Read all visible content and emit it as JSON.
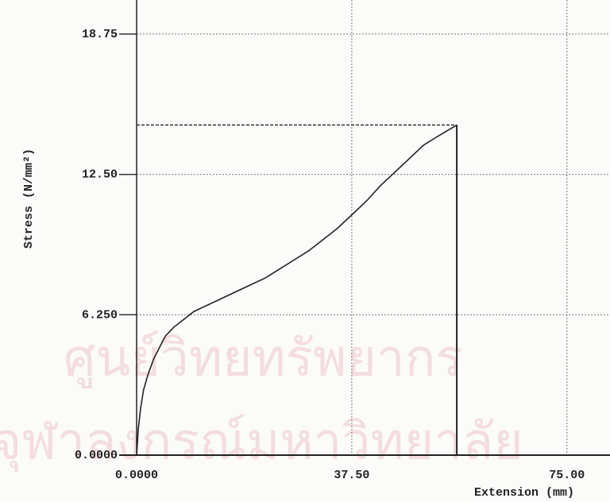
{
  "chart_data": {
    "type": "line",
    "watermark": [
      "ศูนย์วิทยทรัพยากร",
      "จุฬาลงกรณ์มหาวิทยาลัย"
    ],
    "x_label": "Extension (mm)",
    "y_label": "Stress (N/mm²)",
    "series": [
      {
        "color": "#222222",
        "x": [
          0,
          0.3,
          0.7,
          1.2,
          2,
          3,
          4,
          5,
          6.5,
          8,
          10,
          12.5,
          15,
          17.5,
          20,
          22.5,
          25,
          27.5,
          30,
          32.5,
          35,
          37.5,
          40,
          42.5,
          45,
          47.5,
          50,
          52.5,
          55.8
        ],
        "values": [
          0,
          1.2,
          2.1,
          2.9,
          3.6,
          4.3,
          4.8,
          5.3,
          5.7,
          6.0,
          6.4,
          6.7,
          7.0,
          7.3,
          7.6,
          7.9,
          8.3,
          8.7,
          9.1,
          9.6,
          10.1,
          10.7,
          11.3,
          12.0,
          12.6,
          13.2,
          13.8,
          14.2,
          14.7
        ]
      }
    ],
    "max_extension": 55.8,
    "max_stress": 14.7,
    "xlim": [
      0,
      82.5
    ],
    "ylim": [
      0,
      20.2
    ],
    "xticks": [
      {
        "value": 0,
        "label": "0.0000"
      },
      {
        "value": 37.5,
        "label": "37.50"
      },
      {
        "value": 75,
        "label": "75.00"
      }
    ],
    "yticks": [
      {
        "value": 0,
        "label": "0.0000"
      },
      {
        "value": 6.25,
        "label": "6.250"
      },
      {
        "value": 12.5,
        "label": "12.50"
      },
      {
        "value": 18.75,
        "label": "18.75"
      }
    ],
    "grid": true
  }
}
